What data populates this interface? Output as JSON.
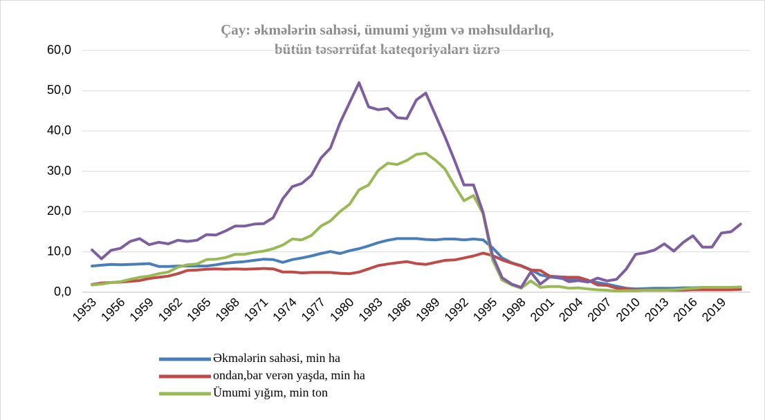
{
  "chart_data": {
    "type": "line",
    "title": [
      "Çay: əkmələrin sahəsi, ümumi yığım və məhsuldarlıq,",
      "bütün təsərrüfat kateqoriyaları üzrə"
    ],
    "categories": [
      "1953",
      null,
      null,
      "1956",
      null,
      null,
      "1959",
      null,
      null,
      "1962",
      null,
      null,
      "1965",
      null,
      null,
      "1968",
      null,
      null,
      "1971",
      null,
      null,
      "1974",
      null,
      null,
      "1977",
      null,
      null,
      "1980",
      null,
      null,
      "1983",
      null,
      null,
      "1986",
      null,
      null,
      "1989",
      null,
      null,
      "1992",
      null,
      null,
      "1995",
      null,
      null,
      "1998",
      null,
      null,
      "2001",
      null,
      null,
      "2004",
      null,
      null,
      "2007",
      null,
      null,
      "2010",
      null,
      null,
      "2013",
      null,
      null,
      "2016",
      null,
      null,
      "2019",
      null,
      null
    ],
    "ylim": [
      0,
      60
    ],
    "yticks": [
      {
        "value": 0,
        "label": "0,0"
      },
      {
        "value": 10,
        "label": "10,0"
      },
      {
        "value": 20,
        "label": "20,0"
      },
      {
        "value": 30,
        "label": "30,0"
      },
      {
        "value": 40,
        "label": "40,0"
      },
      {
        "value": 50,
        "label": "50,0"
      },
      {
        "value": 60,
        "label": "60,0"
      }
    ],
    "series": [
      {
        "name": "Əkmələrin  sahəsi, min ha",
        "color": "#4a7ebb",
        "values": [
          6.5,
          6.7,
          6.9,
          6.8,
          6.9,
          7.0,
          7.1,
          6.4,
          6.4,
          6.5,
          6.5,
          6.5,
          6.5,
          6.8,
          7.2,
          7.4,
          7.6,
          7.9,
          8.2,
          8.1,
          7.4,
          8.1,
          8.5,
          9.0,
          9.6,
          10.1,
          9.6,
          10.3,
          10.8,
          11.5,
          12.3,
          12.9,
          13.3,
          13.3,
          13.3,
          13.1,
          13.0,
          13.2,
          13.2,
          13.0,
          13.2,
          13.0,
          11.0,
          8.5,
          7.3,
          6.6,
          5.6,
          4.3,
          3.8,
          3.5,
          3.2,
          3.0,
          2.8,
          2.4,
          2.0,
          1.5,
          1.0,
          0.8,
          0.9,
          1.0,
          1.0,
          1.0,
          1.1,
          1.1,
          1.2,
          1.2,
          1.2,
          1.2,
          1.2
        ]
      },
      {
        "name": "ondan,bar verən yaşda, min ha",
        "color": "#be4b48",
        "values": [
          1.9,
          2.3,
          2.4,
          2.5,
          2.7,
          2.9,
          3.4,
          3.7,
          4.0,
          4.6,
          5.4,
          5.5,
          5.7,
          5.8,
          5.7,
          5.8,
          5.7,
          5.8,
          5.9,
          5.8,
          5.0,
          5.0,
          4.8,
          4.9,
          4.9,
          4.9,
          4.7,
          4.6,
          5.0,
          5.8,
          6.6,
          7.0,
          7.3,
          7.6,
          7.1,
          6.9,
          7.4,
          7.9,
          8.0,
          8.5,
          9.0,
          9.7,
          9.1,
          8.0,
          7.2,
          6.5,
          5.5,
          5.4,
          4.0,
          3.8,
          3.7,
          3.7,
          3.0,
          1.8,
          1.7,
          1.0,
          0.8,
          0.6,
          0.5,
          0.5,
          0.5,
          0.5,
          0.5,
          0.6,
          0.6,
          0.6,
          0.6,
          0.6,
          0.7
        ]
      },
      {
        "name": "Ümumi yığım, min ton",
        "color": "#98b954",
        "values": [
          1.8,
          2.0,
          2.4,
          2.6,
          3.2,
          3.7,
          4.0,
          4.6,
          5.0,
          6.2,
          6.8,
          7.0,
          8.1,
          8.2,
          8.6,
          9.4,
          9.4,
          9.9,
          10.2,
          10.8,
          11.7,
          13.2,
          13.0,
          14.1,
          16.4,
          17.7,
          20.0,
          21.8,
          25.4,
          26.6,
          30.2,
          32.0,
          31.7,
          32.7,
          34.2,
          34.5,
          32.8,
          30.6,
          26.5,
          22.7,
          24.0,
          19.5,
          8.0,
          3.0,
          1.8,
          1.0,
          2.8,
          1.2,
          1.4,
          1.4,
          1.0,
          1.1,
          0.8,
          0.6,
          0.5,
          0.3,
          0.4,
          0.4,
          0.5,
          0.5,
          0.5,
          0.6,
          0.8,
          1.0,
          1.2,
          1.2,
          1.2,
          1.2,
          1.3
        ]
      },
      {
        "color": "#7d5fa0",
        "values": [
          10.5,
          8.3,
          10.4,
          10.9,
          12.6,
          13.3,
          11.8,
          12.4,
          12.0,
          12.9,
          12.6,
          12.9,
          14.3,
          14.2,
          15.2,
          16.4,
          16.4,
          16.9,
          17.0,
          18.5,
          23.2,
          26.2,
          27.0,
          29.0,
          33.3,
          35.8,
          42.0,
          47.0,
          52.0,
          46.0,
          45.3,
          45.6,
          43.3,
          43.1,
          47.7,
          49.4,
          44.0,
          38.6,
          32.8,
          26.6,
          26.6,
          19.8,
          9.0,
          3.6,
          2.0,
          1.2,
          5.0,
          2.0,
          3.8,
          3.8,
          2.6,
          2.9,
          2.5,
          3.5,
          2.8,
          3.2,
          5.7,
          9.4,
          9.8,
          10.5,
          12.0,
          10.2,
          12.4,
          14.0,
          11.2,
          11.2,
          14.7,
          15.0,
          16.9
        ]
      }
    ]
  }
}
